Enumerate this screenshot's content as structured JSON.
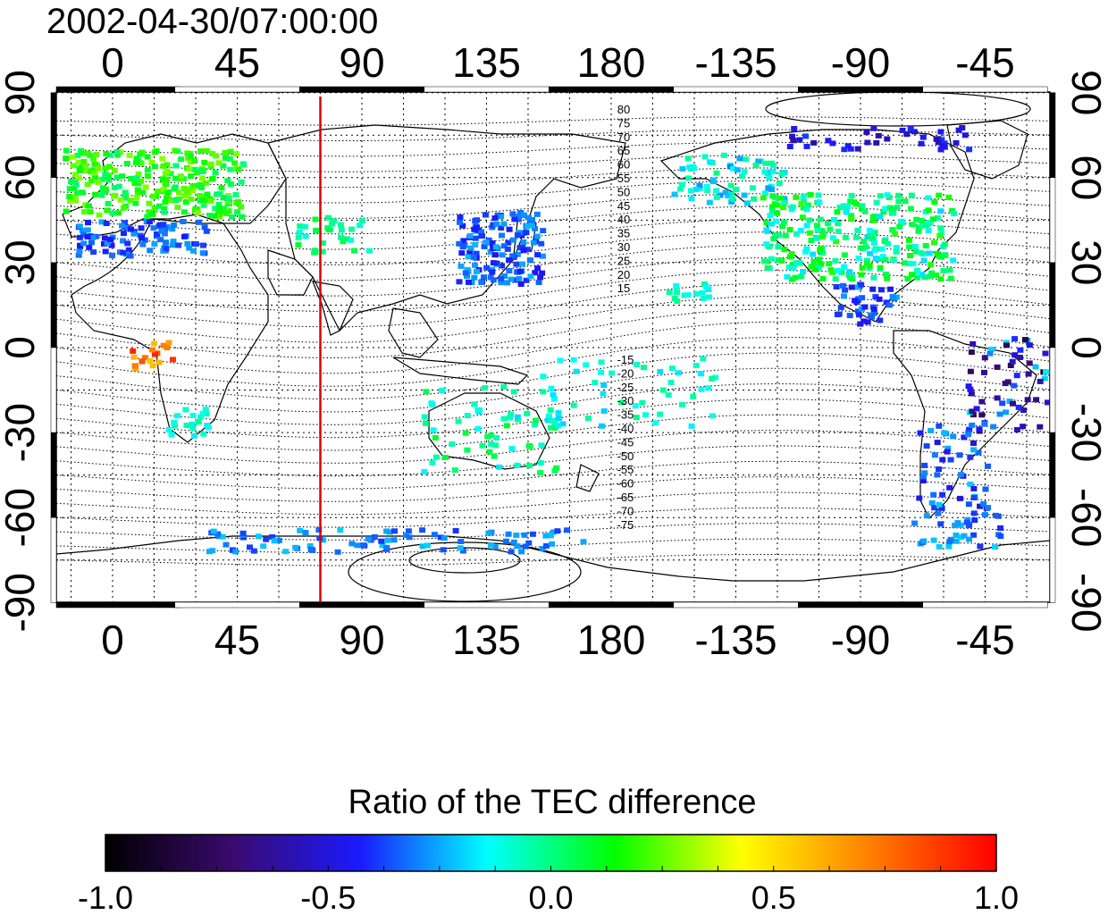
{
  "title": "2002-04-30/07:00:00",
  "map": {
    "lon_ticks_top": [
      "0",
      "45",
      "90",
      "135",
      "180",
      "-135",
      "-90",
      "-45"
    ],
    "lon_ticks_bottom": [
      "0",
      "45",
      "90",
      "135",
      "180",
      "-135",
      "-90",
      "-45"
    ],
    "lat_ticks_left": [
      "90",
      "60",
      "30",
      "0",
      "-30",
      "-60",
      "-90"
    ],
    "lat_ticks_right": [
      "90",
      "60",
      "30",
      "0",
      "-30",
      "-60",
      "-90"
    ],
    "marker_longitude": 75,
    "marker_color": "#dd0000",
    "mlat_labels_north": [
      "80",
      "75",
      "70",
      "65",
      "60",
      "55",
      "50",
      "45",
      "40",
      "35",
      "30",
      "25",
      "20",
      "15"
    ],
    "mlat_labels_south": [
      "-15",
      "-20",
      "-25",
      "-30",
      "-35",
      "-40",
      "-45",
      "-50",
      "-55",
      "-60",
      "-65",
      "-70",
      "-75"
    ]
  },
  "colorbar": {
    "title": "Ratio of the TEC difference",
    "range": [
      -1.0,
      1.0
    ],
    "ticks": [
      "-1.0",
      "-0.5",
      "0.0",
      "0.5",
      "1.0"
    ],
    "colors": [
      "#000000",
      "#3a0a6e",
      "#1a1aff",
      "#00ffff",
      "#00ff00",
      "#ffff00",
      "#ff8000",
      "#ff0000"
    ]
  }
}
